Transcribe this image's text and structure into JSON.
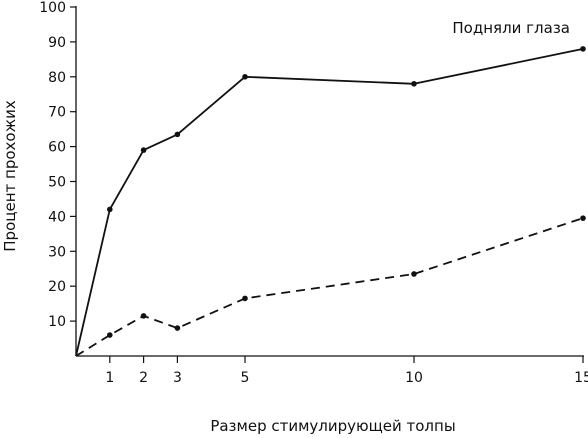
{
  "chart_data": {
    "type": "line",
    "title": "",
    "xlabel": "Размер стимулирующей толпы",
    "ylabel": "Процент прохожих",
    "xlim": [
      0,
      15
    ],
    "ylim": [
      0,
      100
    ],
    "x_ticks": [
      1,
      2,
      3,
      5,
      10,
      15
    ],
    "y_ticks": [
      10,
      20,
      30,
      40,
      50,
      60,
      70,
      80,
      90,
      100
    ],
    "grid": false,
    "series": [
      {
        "name": "Подняли глаза",
        "style": "solid",
        "color": "#111111",
        "x": [
          0,
          1,
          2,
          3,
          5,
          10,
          15
        ],
        "y": [
          0,
          42,
          59,
          63.5,
          80,
          78,
          88
        ]
      },
      {
        "style": "dashed",
        "color": "#111111",
        "x": [
          0,
          1,
          2,
          3,
          5,
          10,
          15
        ],
        "y": [
          0,
          6,
          11.5,
          8,
          16.5,
          23.5,
          39.5
        ]
      }
    ]
  }
}
